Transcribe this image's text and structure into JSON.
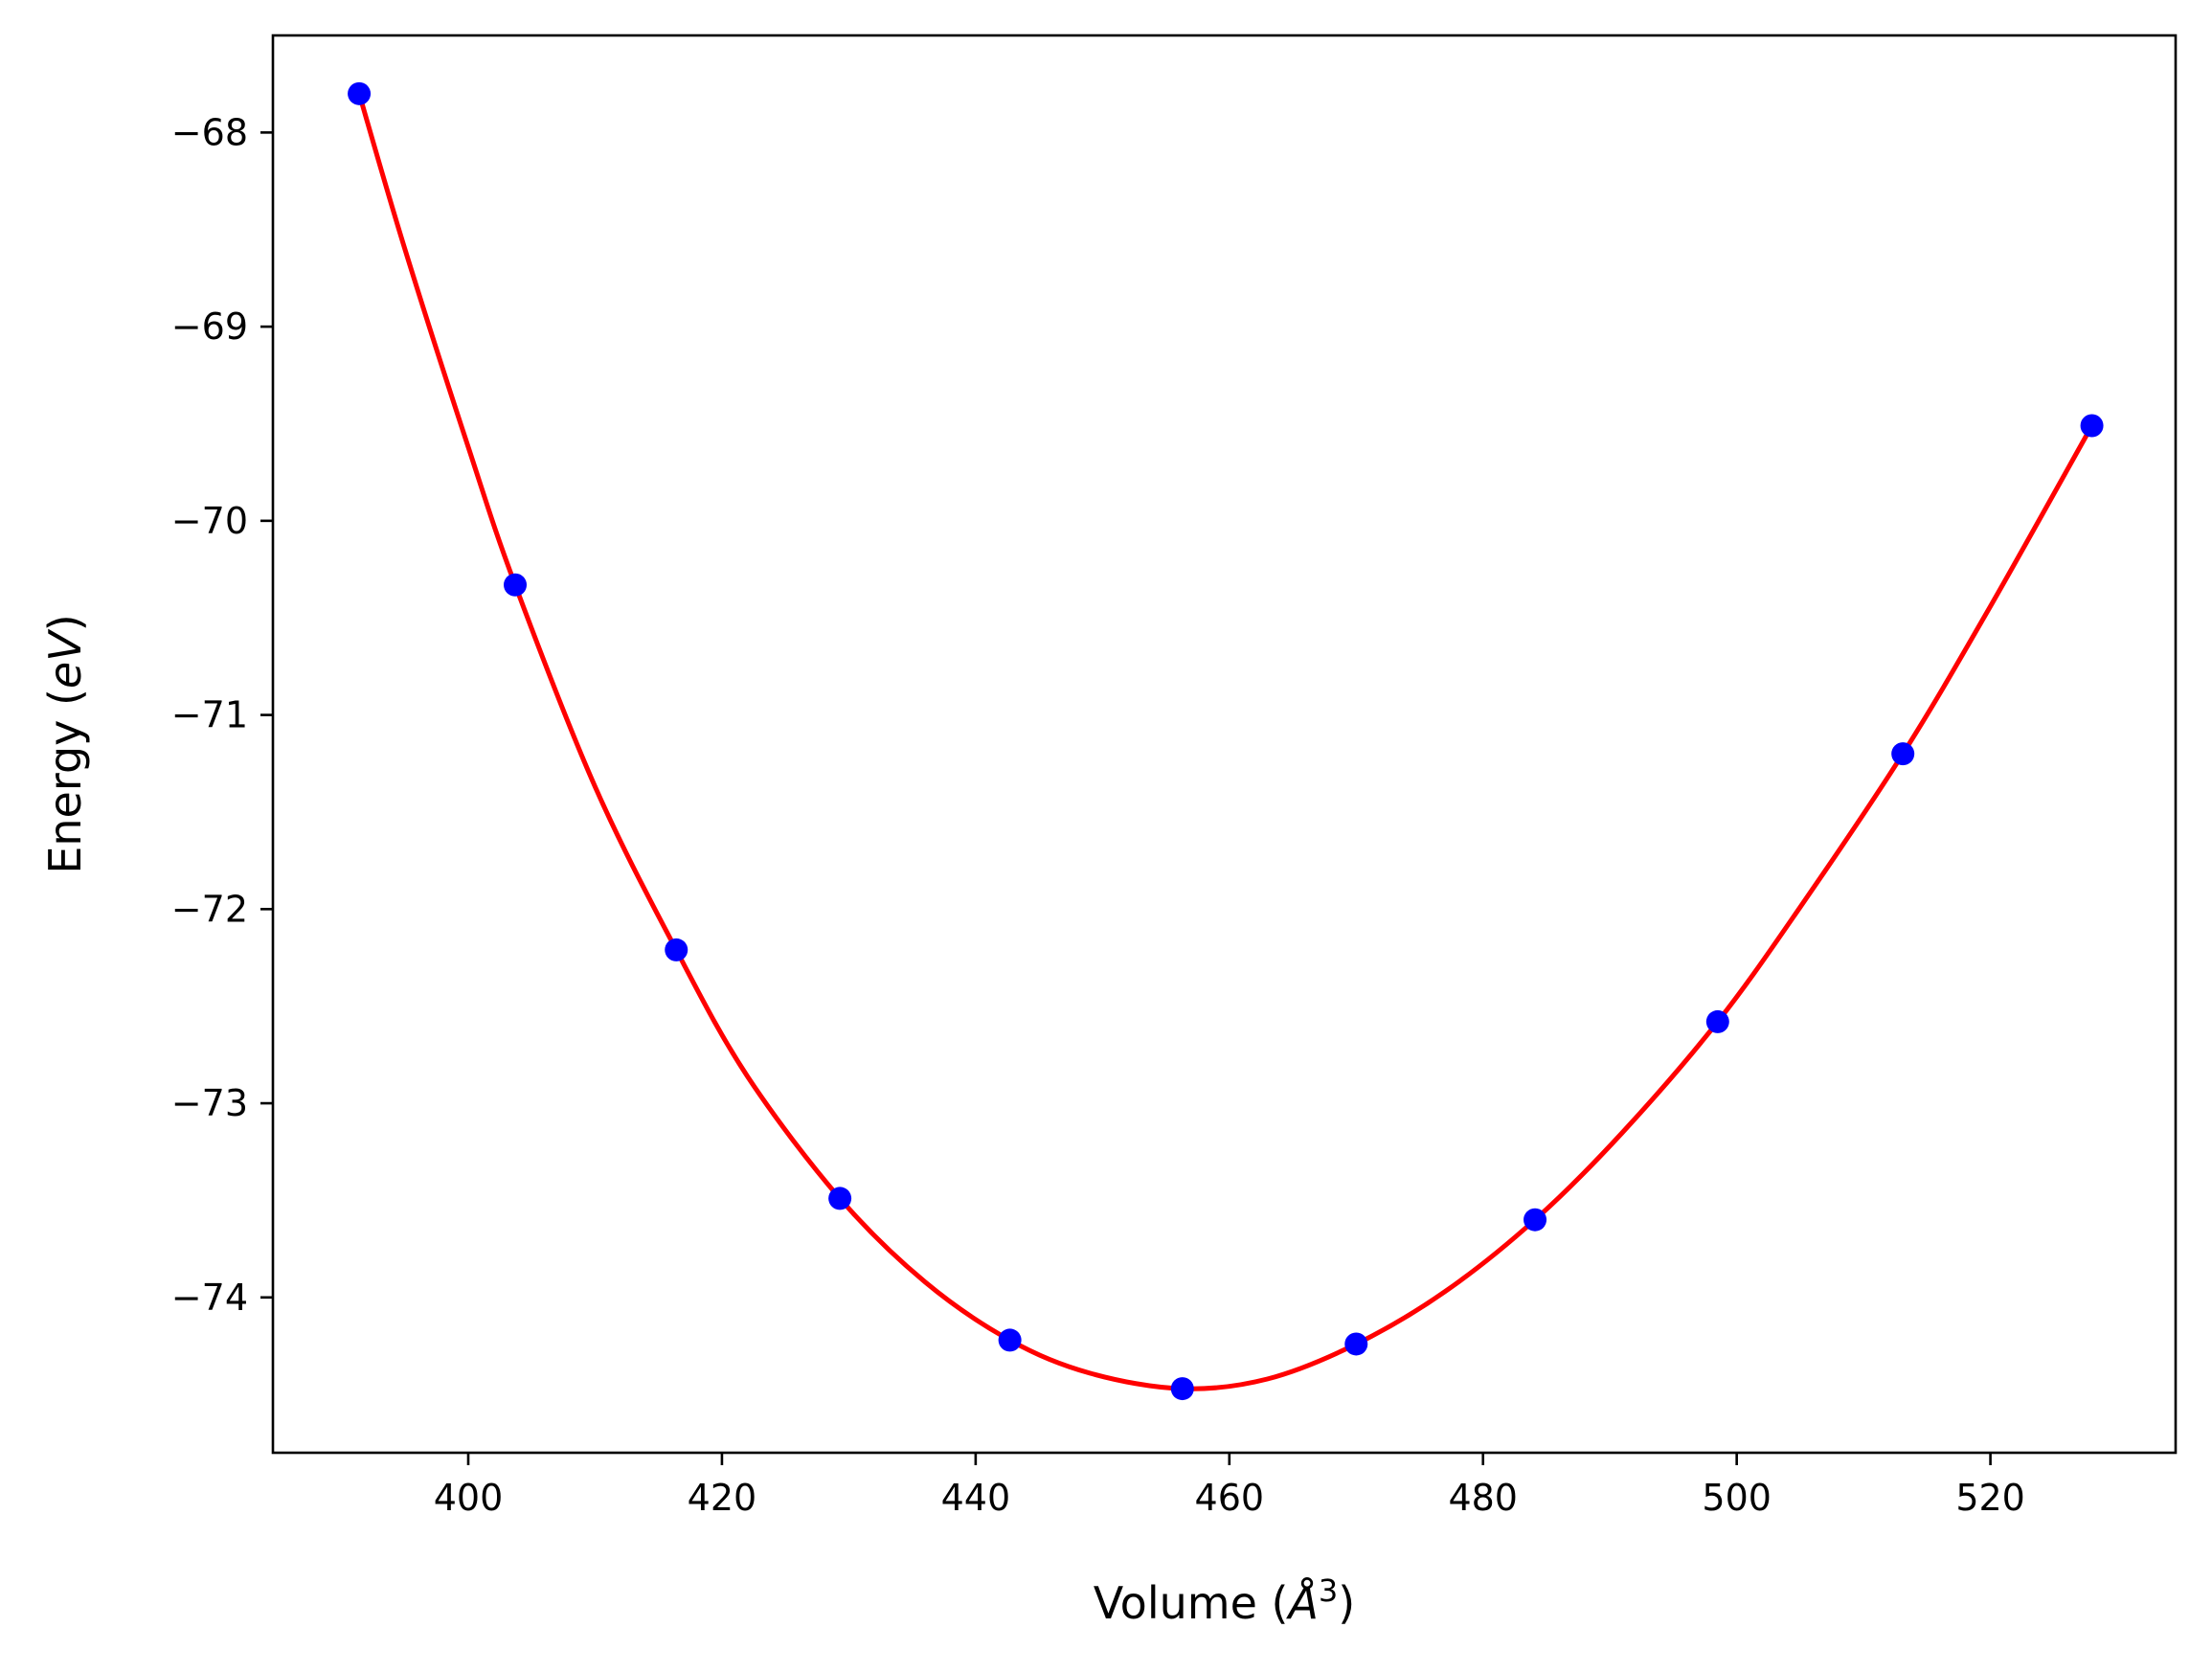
{
  "chart_data": {
    "type": "line",
    "title": "",
    "xlabel": "Volume (Å³)",
    "ylabel": "Energy (eV)",
    "xlabel_parts": {
      "text": "Volume (",
      "symbol": "Å",
      "exp": "3",
      "close": ")"
    },
    "ylabel_parts": {
      "text": "Energy (",
      "symbol": "eV",
      "close": ")"
    },
    "xlim": [
      384.6,
      534.6
    ],
    "ylim": [
      -74.8,
      -67.5
    ],
    "xticks": [
      400,
      420,
      440,
      460,
      480,
      500,
      520
    ],
    "yticks": [
      -68,
      -69,
      -70,
      -71,
      -72,
      -73,
      -74
    ],
    "xtick_labels": [
      "400",
      "420",
      "440",
      "460",
      "480",
      "500",
      "520"
    ],
    "ytick_labels": [
      "−68",
      "−69",
      "−70",
      "−71",
      "−72",
      "−73",
      "−74"
    ],
    "grid": false,
    "series": [
      {
        "kind": "points",
        "color": "#0000ff",
        "x": [
          391.4,
          403.7,
          416.4,
          429.3,
          442.7,
          456.3,
          470.0,
          484.1,
          498.5,
          513.1,
          528.0
        ],
        "y": [
          -67.8,
          -70.33,
          -72.21,
          -73.49,
          -74.22,
          -74.47,
          -74.24,
          -73.6,
          -72.58,
          -71.2,
          -69.51
        ]
      },
      {
        "kind": "fit",
        "color": "#ff0000",
        "x": [
          391.4,
          395.0,
          400.0,
          403.7,
          410.0,
          416.4,
          422.0,
          429.3,
          436.0,
          442.7,
          449.0,
          456.3,
          463.0,
          470.0,
          477.0,
          484.1,
          491.0,
          498.5,
          505.0,
          513.1,
          520.0,
          528.0
        ],
        "y": [
          -67.8,
          -68.6,
          -69.62,
          -70.33,
          -71.37,
          -72.21,
          -72.86,
          -73.49,
          -73.92,
          -74.22,
          -74.39,
          -74.47,
          -74.42,
          -74.24,
          -73.97,
          -73.6,
          -73.15,
          -72.58,
          -71.99,
          -71.2,
          -70.44,
          -69.51
        ]
      }
    ],
    "colors": {
      "fit_line": "#ff0000",
      "points": "#0000ff",
      "axes": "#000000"
    }
  }
}
